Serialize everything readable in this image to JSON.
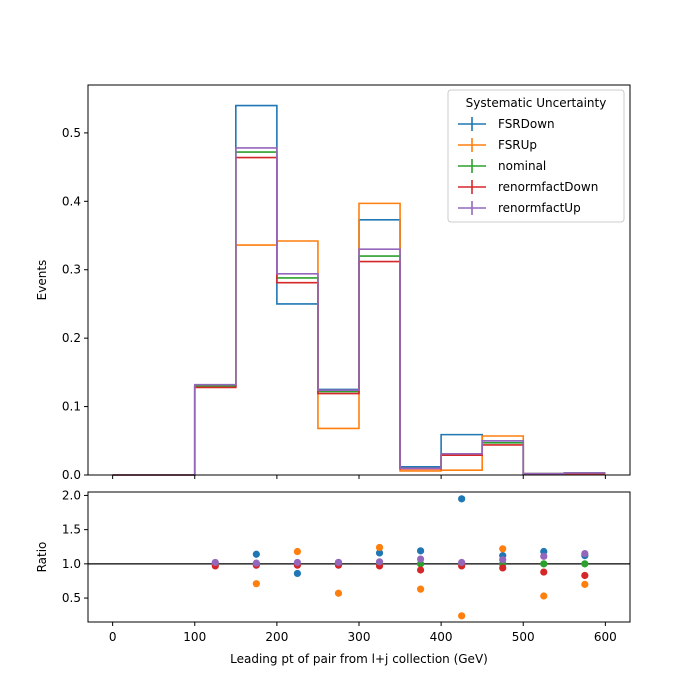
{
  "chart_data": [
    {
      "type": "step",
      "ylabel": "Events",
      "xlim": [
        -30,
        630
      ],
      "ylim": [
        0,
        0.57
      ],
      "yticks": [
        0.0,
        0.1,
        0.2,
        0.3,
        0.4,
        0.5
      ],
      "ytick_labels": [
        "0.0",
        "0.1",
        "0.2",
        "0.3",
        "0.4",
        "0.5"
      ],
      "bin_edges": [
        0,
        50,
        100,
        150,
        200,
        250,
        300,
        350,
        400,
        450,
        500,
        550,
        600
      ],
      "legend": {
        "title": "Systematic Uncertainty",
        "position": "top-right"
      },
      "series": [
        {
          "name": "FSRDown",
          "color": "#1f77b4",
          "values": [
            0,
            0,
            0.13,
            0.54,
            0.25,
            0.125,
            0.373,
            0.012,
            0.059,
            0.05,
            0.002,
            0.003
          ]
        },
        {
          "name": "FSRUp",
          "color": "#ff7f0e",
          "values": [
            0,
            0,
            0.13,
            0.336,
            0.342,
            0.068,
            0.397,
            0.006,
            0.007,
            0.057,
            0.001,
            0.002
          ]
        },
        {
          "name": "nominal",
          "color": "#2ca02c",
          "values": [
            0,
            0,
            0.13,
            0.472,
            0.288,
            0.122,
            0.32,
            0.01,
            0.03,
            0.047,
            0.002,
            0.003
          ]
        },
        {
          "name": "renormfactDown",
          "color": "#d62728",
          "values": [
            0,
            0,
            0.128,
            0.464,
            0.281,
            0.119,
            0.312,
            0.009,
            0.029,
            0.044,
            0.002,
            0.002
          ]
        },
        {
          "name": "renormfactUp",
          "color": "#9467bd",
          "values": [
            0,
            0,
            0.132,
            0.478,
            0.294,
            0.124,
            0.33,
            0.01,
            0.031,
            0.05,
            0.002,
            0.003
          ]
        }
      ]
    },
    {
      "type": "scatter",
      "xlabel": "Leading pt of pair from l+j collection (GeV)",
      "ylabel": "Ratio",
      "xlim": [
        -30,
        630
      ],
      "ylim": [
        0.15,
        2.05
      ],
      "xticks": [
        0,
        100,
        200,
        300,
        400,
        500,
        600
      ],
      "xtick_labels": [
        "0",
        "100",
        "200",
        "300",
        "400",
        "500",
        "600"
      ],
      "yticks": [
        0.5,
        1.0,
        1.5,
        2.0
      ],
      "ytick_labels": [
        "0.5",
        "1.0",
        "1.5",
        "2.0"
      ],
      "reference_line": 1.0,
      "x": [
        125,
        175,
        225,
        275,
        325,
        375,
        425,
        475,
        525,
        575
      ],
      "series": [
        {
          "name": "FSRDown",
          "color": "#1f77b4",
          "values": [
            1.0,
            1.14,
            0.86,
            1.02,
            1.16,
            1.19,
            1.95,
            1.12,
            1.18,
            1.12
          ]
        },
        {
          "name": "FSRUp",
          "color": "#ff7f0e",
          "values": [
            1.0,
            0.71,
            1.18,
            0.57,
            1.24,
            0.63,
            0.24,
            1.22,
            0.53,
            0.7
          ]
        },
        {
          "name": "nominal",
          "color": "#2ca02c",
          "values": [
            1.0,
            1.0,
            1.0,
            1.0,
            1.0,
            1.0,
            1.0,
            1.0,
            1.0,
            1.0
          ]
        },
        {
          "name": "renormfactDown",
          "color": "#d62728",
          "values": [
            0.97,
            0.98,
            0.98,
            0.98,
            0.97,
            0.91,
            0.97,
            0.94,
            0.88,
            0.83
          ]
        },
        {
          "name": "renormfactUp",
          "color": "#9467bd",
          "values": [
            1.02,
            1.01,
            1.02,
            1.02,
            1.03,
            1.07,
            1.02,
            1.06,
            1.11,
            1.15
          ]
        }
      ]
    }
  ]
}
